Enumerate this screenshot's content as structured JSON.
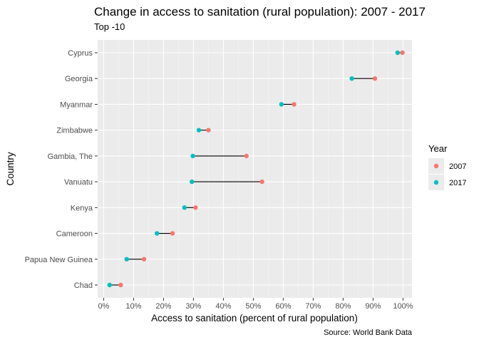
{
  "title": "Change in access to sanitation (rural population): 2007 - 2017",
  "subtitle": "Top -10",
  "caption": "Source: World Bank Data",
  "colors": {
    "panel_bg": "#ebebeb",
    "grid_major": "#ffffff",
    "grid_minor": "#f5f5f5",
    "series_2007": "#f8766d",
    "series_2017": "#00bfc4",
    "segment": "#000000"
  },
  "chart_data": {
    "type": "dumbbell",
    "title": "Change in access to sanitation (rural population): 2007 - 2017",
    "subtitle": "Top -10",
    "xlabel": "Access to sanitation (percent of rural population)",
    "ylabel": "Country",
    "xlim": [
      -2,
      103
    ],
    "x_ticks": [
      0,
      10,
      20,
      30,
      40,
      50,
      60,
      70,
      80,
      90,
      100
    ],
    "x_tick_labels": [
      "0%",
      "10%",
      "20%",
      "30%",
      "40%",
      "50%",
      "60%",
      "70%",
      "80%",
      "90%",
      "100%"
    ],
    "grid": true,
    "legend": {
      "title": "Year",
      "position": "right",
      "entries": [
        "2007",
        "2017"
      ]
    },
    "categories": [
      "Cyprus",
      "Georgia",
      "Myanmar",
      "Zimbabwe",
      "Gambia, The",
      "Vanuatu",
      "Kenya",
      "Cameroon",
      "Papua New Guinea",
      "Chad"
    ],
    "series": [
      {
        "name": "2007",
        "values": [
          99.8,
          90.6,
          63.6,
          35.0,
          47.7,
          52.9,
          30.7,
          23.0,
          13.5,
          5.7
        ]
      },
      {
        "name": "2017",
        "values": [
          98.2,
          82.9,
          59.4,
          31.8,
          29.8,
          29.5,
          27.0,
          17.8,
          7.7,
          2.0
        ]
      }
    ]
  }
}
